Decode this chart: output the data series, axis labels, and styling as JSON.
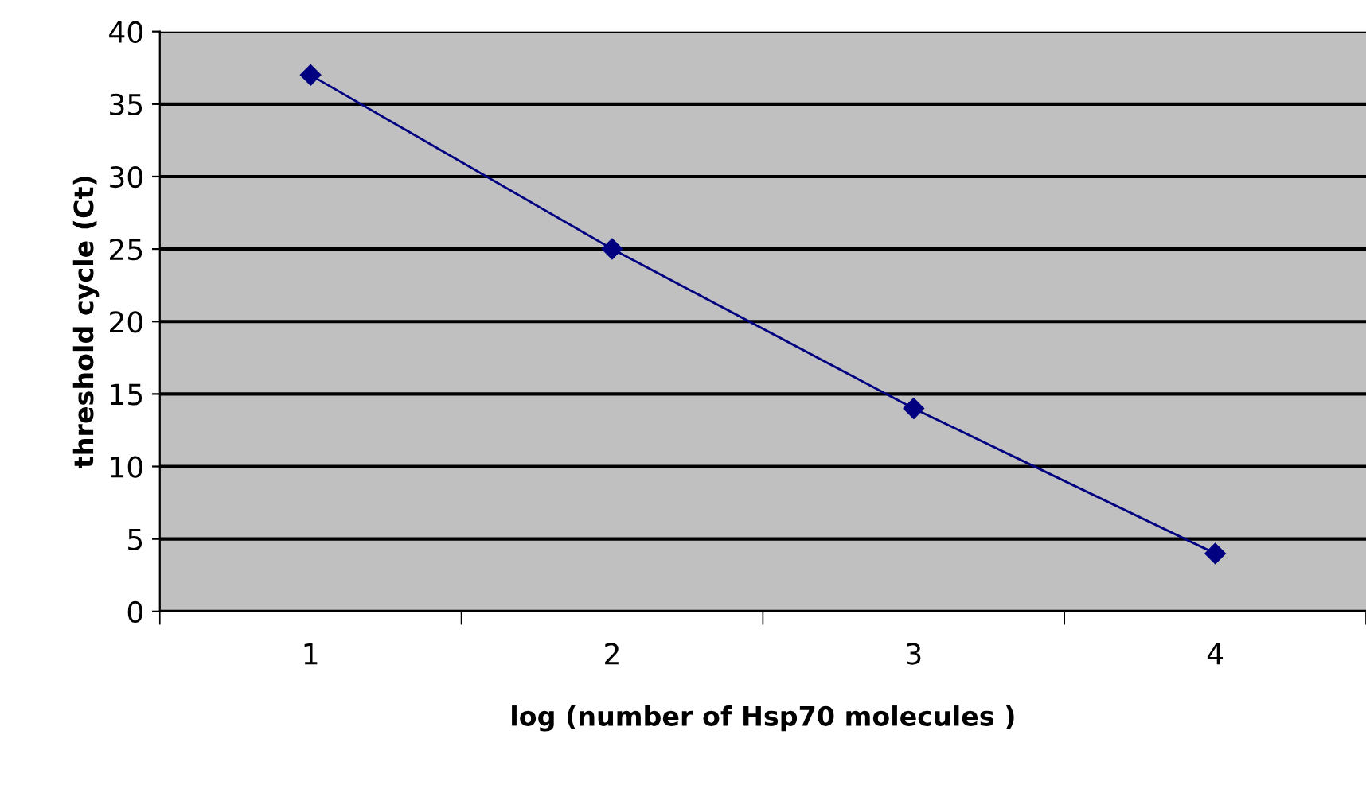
{
  "chart_data": {
    "type": "line",
    "xlabel": "log (number of Hsp70 molecules )",
    "ylabel": "threshold cycle (Ct)",
    "categories": [
      "1",
      "2",
      "3",
      "4"
    ],
    "series": [
      {
        "color": "#000080",
        "values": [
          37,
          25,
          14,
          4
        ]
      }
    ],
    "ylim": [
      0,
      40
    ],
    "yticks": [
      0,
      5,
      10,
      15,
      20,
      25,
      30,
      35,
      40
    ],
    "grid": "y",
    "marker": "diamond",
    "line_style": "solid",
    "legend": false
  }
}
